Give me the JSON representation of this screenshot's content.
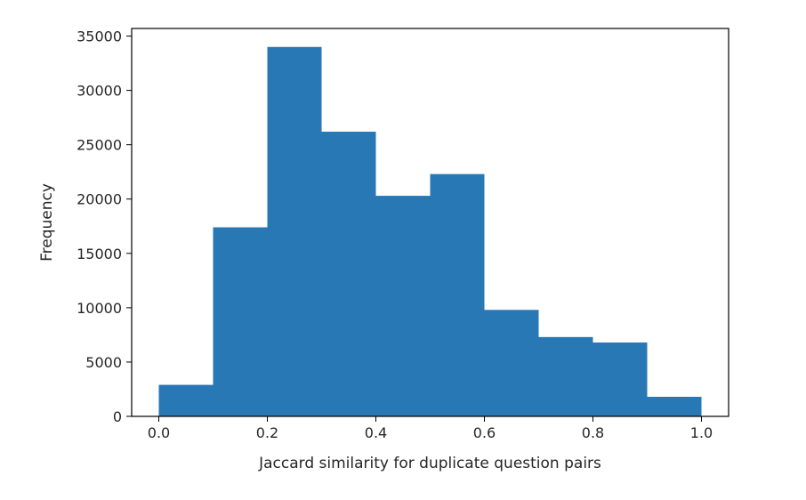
{
  "chart_data": {
    "type": "bar",
    "title": "",
    "xlabel": "Jaccard similarity for duplicate question pairs",
    "ylabel": "Frequency",
    "bins": [
      {
        "x0": 0.0,
        "x1": 0.1,
        "value": 2900
      },
      {
        "x0": 0.1,
        "x1": 0.2,
        "value": 17400
      },
      {
        "x0": 0.2,
        "x1": 0.3,
        "value": 34000
      },
      {
        "x0": 0.3,
        "x1": 0.4,
        "value": 26200
      },
      {
        "x0": 0.4,
        "x1": 0.5,
        "value": 20300
      },
      {
        "x0": 0.5,
        "x1": 0.6,
        "value": 22300
      },
      {
        "x0": 0.6,
        "x1": 0.7,
        "value": 9800
      },
      {
        "x0": 0.7,
        "x1": 0.8,
        "value": 7300
      },
      {
        "x0": 0.8,
        "x1": 0.9,
        "value": 6800
      },
      {
        "x0": 0.9,
        "x1": 1.0,
        "value": 1800
      }
    ],
    "xlim": [
      -0.05,
      1.05
    ],
    "ylim": [
      0,
      35700
    ],
    "x_ticks": [
      0.0,
      0.2,
      0.4,
      0.6,
      0.8,
      1.0
    ],
    "x_tick_labels": [
      "0.0",
      "0.2",
      "0.4",
      "0.6",
      "0.8",
      "1.0"
    ],
    "y_ticks": [
      0,
      5000,
      10000,
      15000,
      20000,
      25000,
      30000,
      35000
    ],
    "y_tick_labels": [
      "0",
      "5000",
      "10000",
      "15000",
      "20000",
      "25000",
      "30000",
      "35000"
    ],
    "bar_color": "#2778b4",
    "grid": false,
    "legend": "none"
  }
}
